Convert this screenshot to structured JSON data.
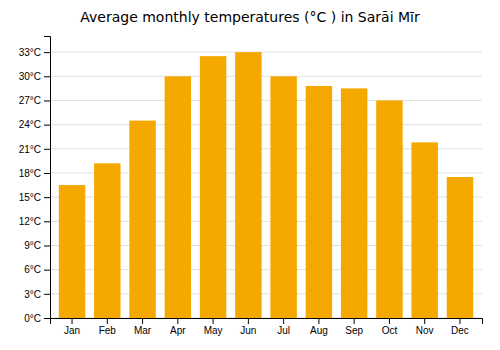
{
  "chart_data": {
    "type": "bar",
    "title": "Average monthly temperatures (°C ) in Sarāi Mīr",
    "categories": [
      "Jan",
      "Feb",
      "Mar",
      "Apr",
      "May",
      "Jun",
      "Jul",
      "Aug",
      "Sep",
      "Oct",
      "Nov",
      "Dec"
    ],
    "values": [
      16.5,
      19.2,
      24.5,
      30.0,
      32.5,
      33.0,
      30.0,
      28.8,
      28.5,
      27.0,
      21.8,
      17.5
    ],
    "color": "#F5A800",
    "ylim": [
      0,
      35
    ],
    "yticks": [
      {
        "value": 0,
        "label": "0°C"
      },
      {
        "value": 3,
        "label": "3°C"
      },
      {
        "value": 6,
        "label": "6°C"
      },
      {
        "value": 9,
        "label": "9°C"
      },
      {
        "value": 12,
        "label": "12°C"
      },
      {
        "value": 15,
        "label": "15°C"
      },
      {
        "value": 18,
        "label": "18°C"
      },
      {
        "value": 21,
        "label": "21°C"
      },
      {
        "value": 24,
        "label": "24°C"
      },
      {
        "value": 27,
        "label": "27°C"
      },
      {
        "value": 30,
        "label": "30°C"
      },
      {
        "value": 33,
        "label": "33°C"
      }
    ],
    "grid": true
  }
}
